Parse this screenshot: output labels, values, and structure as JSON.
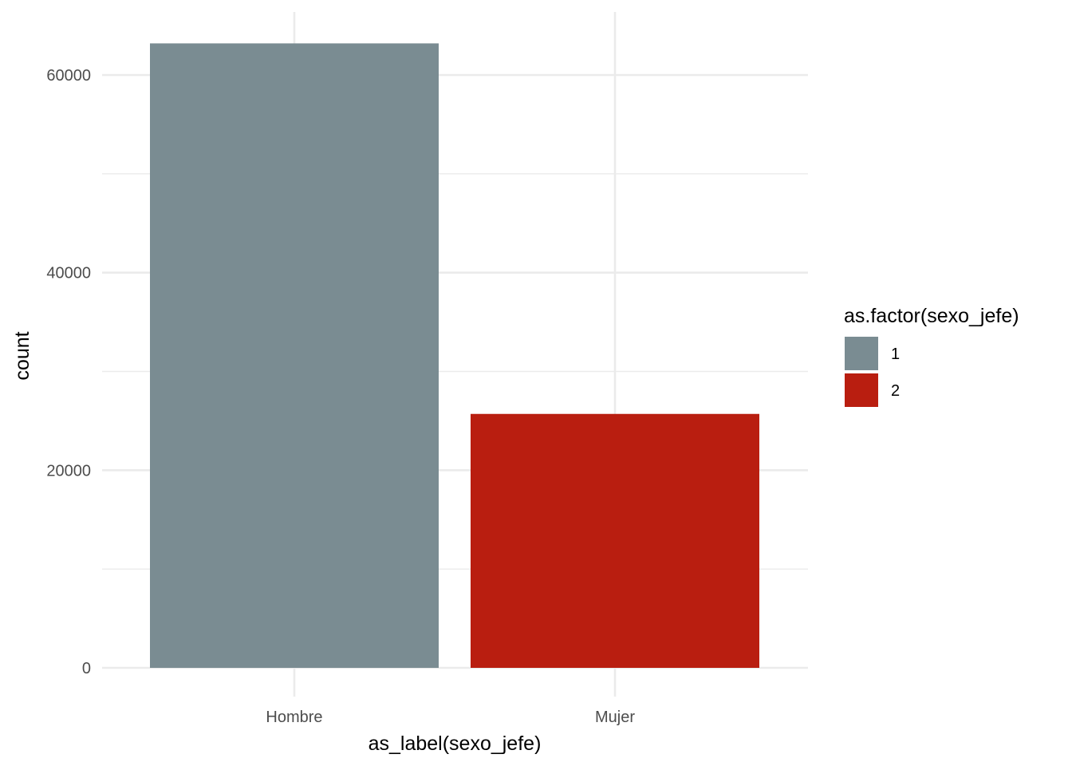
{
  "chart_data": {
    "type": "bar",
    "categories": [
      "Hombre",
      "Mujer"
    ],
    "values": [
      63200,
      25700
    ],
    "fill_groups": [
      "1",
      "2"
    ],
    "colors": [
      "#7a8c92",
      "#b91e10"
    ],
    "xlabel": "as_label(sexo_jefe)",
    "ylabel": "count",
    "ylim": [
      0,
      65000
    ],
    "y_ticks": [
      0,
      20000,
      40000,
      60000
    ],
    "y_tick_labels": [
      "0",
      "20000",
      "40000",
      "60000"
    ],
    "y_minor_ticks": [
      10000,
      30000,
      50000
    ],
    "grid": true,
    "legend": {
      "title": "as.factor(sexo_jefe)",
      "placement": "right",
      "items": [
        {
          "label": "1",
          "color": "#7a8c92"
        },
        {
          "label": "2",
          "color": "#b91e10"
        }
      ]
    }
  }
}
